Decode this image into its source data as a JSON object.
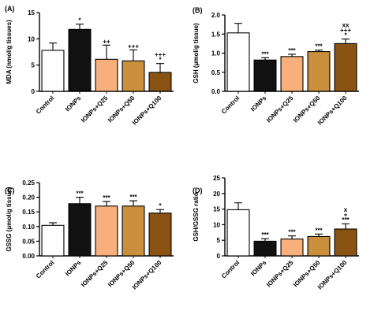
{
  "categories": [
    "Control",
    "IONPs",
    "IONPs+Q25",
    "IONPs+Q50",
    "IONPs+Q100"
  ],
  "bar_colors": [
    "#ffffff",
    "#111111",
    "#f7b07c",
    "#c98f3c",
    "#8a5314"
  ],
  "chart_data": [
    {
      "type": "bar",
      "panel_label": "(A)",
      "title": "",
      "xlabel": "",
      "ylabel": "MDA (nmol/g tissues)",
      "ylim": [
        0,
        15
      ],
      "yticks": [
        0,
        5,
        10,
        15
      ],
      "categories": [
        "Control",
        "IONPs",
        "IONPs+Q25",
        "IONPs+Q50",
        "IONPs+Q100"
      ],
      "values": [
        7.8,
        11.8,
        6.1,
        5.8,
        3.6
      ],
      "errors": [
        1.4,
        1.0,
        2.7,
        2.1,
        1.7
      ],
      "annotations": [
        "",
        "*",
        "++",
        "+++",
        "+++\n*"
      ]
    },
    {
      "type": "bar",
      "panel_label": "(B)",
      "title": "",
      "xlabel": "",
      "ylabel": "GSH (μmol/g tissue)",
      "ylim": [
        0,
        2.0
      ],
      "yticks": [
        0.0,
        0.5,
        1.0,
        1.5,
        2.0
      ],
      "categories": [
        "Control",
        "IONPs",
        "IONPs+Q25",
        "IONPs+Q50",
        "IONPs+Q100"
      ],
      "values": [
        1.53,
        0.82,
        0.91,
        1.04,
        1.25
      ],
      "errors": [
        0.25,
        0.06,
        0.06,
        0.04,
        0.12
      ],
      "annotations": [
        "",
        "***",
        "***",
        "***",
        "xx\n+++\n*"
      ]
    },
    {
      "type": "bar",
      "panel_label": "(C)",
      "title": "",
      "xlabel": "",
      "ylabel": "GSSG (μmol/g tissue)",
      "ylim": [
        0,
        0.25
      ],
      "yticks": [
        0.0,
        0.05,
        0.1,
        0.15,
        0.2,
        0.25
      ],
      "categories": [
        "Control",
        "IONPs",
        "IONPs+Q25",
        "IONPs+Q50",
        "IONPs+Q100"
      ],
      "values": [
        0.104,
        0.178,
        0.17,
        0.17,
        0.146
      ],
      "errors": [
        0.009,
        0.022,
        0.016,
        0.018,
        0.012
      ],
      "annotations": [
        "",
        "***",
        "***",
        "***",
        "*"
      ]
    },
    {
      "type": "bar",
      "panel_label": "(D)",
      "title": "",
      "xlabel": "",
      "ylabel": "GSH/GSSG ratio",
      "ylim": [
        0,
        25
      ],
      "yticks": [
        0,
        5,
        10,
        15,
        20,
        25
      ],
      "categories": [
        "Control",
        "IONPs",
        "IONPs+Q25",
        "IONPs+Q50",
        "IONPs+Q100"
      ],
      "values": [
        14.8,
        4.7,
        5.4,
        6.2,
        8.6
      ],
      "errors": [
        2.2,
        0.8,
        1.0,
        0.8,
        1.7
      ],
      "annotations": [
        "",
        "***",
        "***",
        "***",
        "x\n+\n***"
      ]
    }
  ]
}
